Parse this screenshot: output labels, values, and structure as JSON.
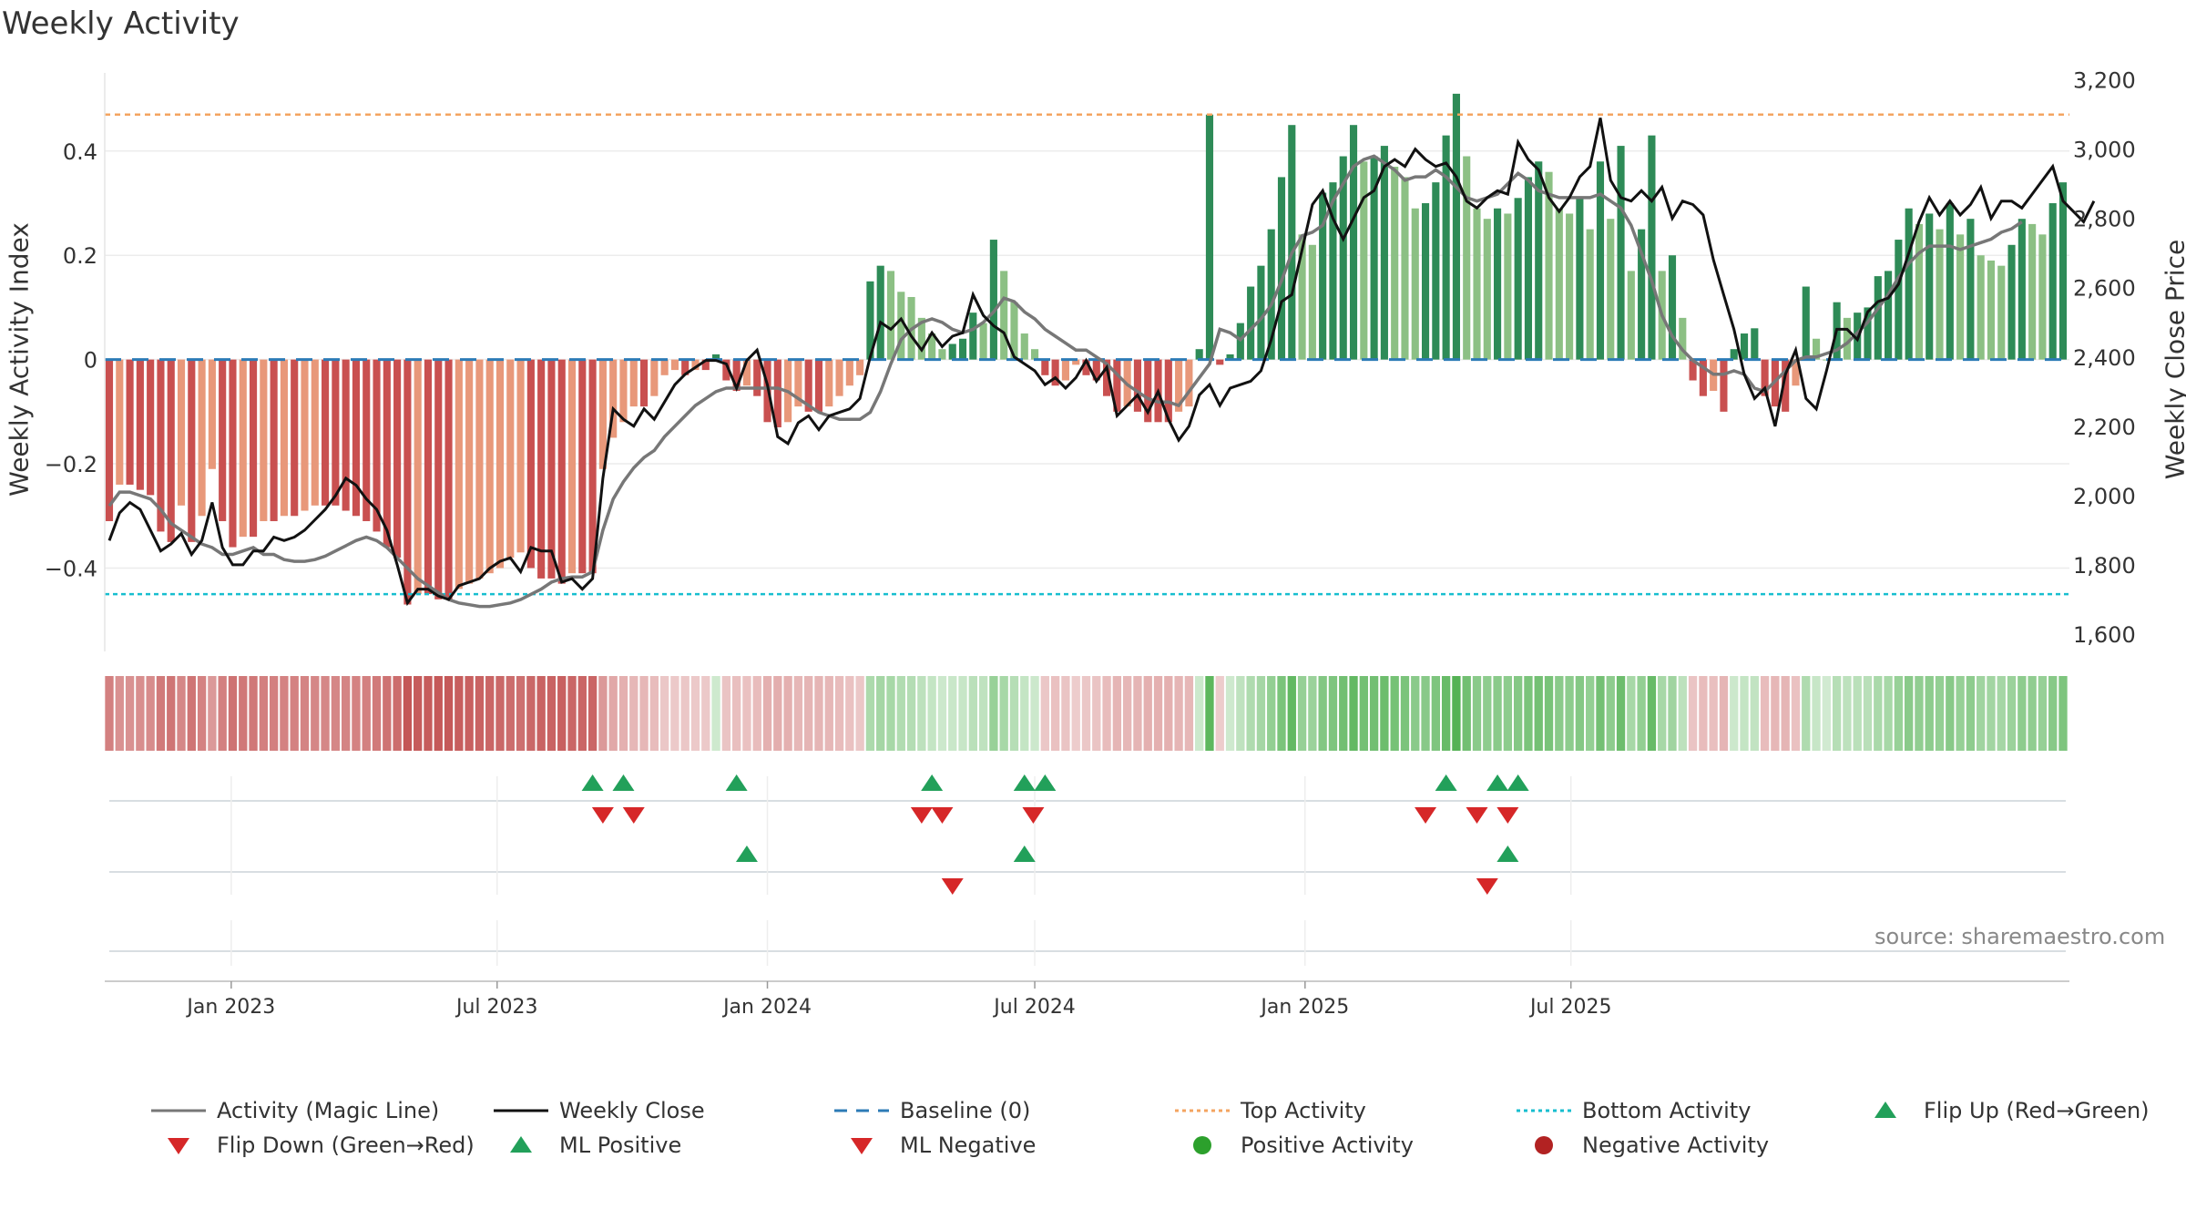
{
  "title": "Weekly Activity",
  "source_text": "source: sharemaestro.com",
  "colors": {
    "bar_neg_dark": "#c95050",
    "bar_neg_light": "#e8987a",
    "bar_pos_dark": "#2e8b57",
    "bar_pos_light": "#8cc084",
    "magic_line": "#777777",
    "weekly_close": "#111111",
    "baseline": "#2c7bb6",
    "top_activity": "#f4a460",
    "bottom_activity": "#17becf",
    "up_marker": "#22a05a",
    "down_marker": "#d62728",
    "pos_activity_dot": "#2ca02c",
    "neg_activity_dot": "#b22222"
  },
  "legend": [
    {
      "label": "Activity (Magic Line)",
      "icon": "gray-line"
    },
    {
      "label": "Weekly Close",
      "icon": "black-line"
    },
    {
      "label": "Baseline (0)",
      "icon": "blue-dashed-line"
    },
    {
      "label": "Top Activity",
      "icon": "orange-dotted-line"
    },
    {
      "label": "Bottom Activity",
      "icon": "cyan-dotted-line"
    },
    {
      "label": "Flip Up (Red→Green)",
      "icon": "green-up-triangle"
    },
    {
      "label": "Flip Down (Green→Red)",
      "icon": "red-down-triangle"
    },
    {
      "label": "ML Positive",
      "icon": "green-up-triangle"
    },
    {
      "label": "ML Negative",
      "icon": "red-down-triangle"
    },
    {
      "label": "Positive Activity",
      "icon": "green-dot"
    },
    {
      "label": "Negative Activity",
      "icon": "red-dot"
    }
  ],
  "chart_data": {
    "type": "bar",
    "title": "Weekly Activity",
    "ylabel": "Weekly Activity Index",
    "ylabel_right": "Weekly Close Price",
    "ylim": [
      -0.56,
      0.55
    ],
    "ylim_right": [
      1550,
      3220
    ],
    "yticks": [
      -0.4,
      -0.2,
      0,
      0.2,
      0.4
    ],
    "ytick_labels": [
      "−0.4",
      "−0.2",
      "0",
      "0.2",
      "0.4"
    ],
    "yticks_right": [
      1600,
      1800,
      2000,
      2200,
      2400,
      2600,
      2800,
      3000,
      3200
    ],
    "ytick_labels_right": [
      "1,600",
      "1,800",
      "2,000",
      "2,200",
      "2,400",
      "2,600",
      "2,800",
      "3,000",
      "3,200"
    ],
    "x_start": "2022-10-10",
    "x_step_days": 7,
    "xticks": [
      "2023-01-01",
      "2023-07-01",
      "2024-01-01",
      "2024-07-01",
      "2025-01-01",
      "2025-07-01"
    ],
    "xtick_labels": [
      "Jan 2023",
      "Jul 2023",
      "Jan 2024",
      "Jul 2024",
      "Jan 2025",
      "Jul 2025"
    ],
    "top_activity": 0.47,
    "bottom_activity": -0.45,
    "baseline": 0,
    "series": [
      {
        "name": "Activity (Magic Line)",
        "axis": "right",
        "values": [
          1970,
          2010,
          2010,
          2000,
          1990,
          1960,
          1920,
          1900,
          1880,
          1860,
          1850,
          1830,
          1830,
          1840,
          1850,
          1830,
          1830,
          1815,
          1810,
          1810,
          1815,
          1825,
          1840,
          1855,
          1870,
          1880,
          1870,
          1850,
          1820,
          1790,
          1760,
          1740,
          1720,
          1700,
          1690,
          1685,
          1680,
          1680,
          1685,
          1690,
          1700,
          1715,
          1730,
          1750,
          1760,
          1765,
          1765,
          1780,
          1900,
          1990,
          2040,
          2080,
          2110,
          2130,
          2170,
          2200,
          2230,
          2260,
          2280,
          2300,
          2310,
          2310,
          2310,
          2310,
          2310,
          2310,
          2300,
          2280,
          2260,
          2240,
          2230,
          2220,
          2220,
          2220,
          2240,
          2300,
          2380,
          2450,
          2480,
          2500,
          2510,
          2500,
          2480,
          2470,
          2480,
          2500,
          2530,
          2570,
          2560,
          2530,
          2510,
          2480,
          2460,
          2440,
          2420,
          2420,
          2400,
          2380,
          2350,
          2320,
          2300,
          2280,
          2270,
          2270,
          2260,
          2300,
          2340,
          2380,
          2480,
          2470,
          2450,
          2480,
          2510,
          2550,
          2620,
          2700,
          2750,
          2760,
          2780,
          2850,
          2900,
          2950,
          2970,
          2980,
          2960,
          2940,
          2910,
          2920,
          2920,
          2940,
          2920,
          2890,
          2860,
          2850,
          2860,
          2870,
          2900,
          2930,
          2910,
          2880,
          2870,
          2860,
          2860,
          2860,
          2860,
          2870,
          2850,
          2830,
          2780,
          2700,
          2620,
          2520,
          2460,
          2420,
          2390,
          2370,
          2350,
          2350,
          2360,
          2350,
          2310,
          2300,
          2330,
          2360,
          2390,
          2400,
          2400,
          2410,
          2420,
          2440,
          2470,
          2500,
          2540,
          2580,
          2630,
          2670,
          2700,
          2720,
          2720,
          2720,
          2710,
          2720,
          2730,
          2740,
          2760,
          2770,
          2790
        ]
      },
      {
        "name": "Weekly Close",
        "axis": "right",
        "values": [
          1870,
          1950,
          1980,
          1960,
          1900,
          1840,
          1860,
          1890,
          1830,
          1870,
          1980,
          1850,
          1800,
          1800,
          1840,
          1840,
          1880,
          1870,
          1880,
          1900,
          1930,
          1960,
          2000,
          2050,
          2030,
          1990,
          1960,
          1900,
          1800,
          1690,
          1730,
          1730,
          1710,
          1700,
          1740,
          1750,
          1760,
          1790,
          1810,
          1820,
          1780,
          1850,
          1840,
          1840,
          1750,
          1760,
          1730,
          1760,
          2050,
          2250,
          2220,
          2200,
          2250,
          2220,
          2270,
          2320,
          2350,
          2370,
          2390,
          2390,
          2380,
          2310,
          2390,
          2420,
          2320,
          2170,
          2150,
          2210,
          2230,
          2190,
          2230,
          2240,
          2250,
          2280,
          2400,
          2500,
          2480,
          2510,
          2460,
          2420,
          2470,
          2430,
          2460,
          2470,
          2580,
          2520,
          2490,
          2470,
          2400,
          2380,
          2360,
          2320,
          2340,
          2310,
          2340,
          2390,
          2330,
          2370,
          2230,
          2260,
          2290,
          2240,
          2300,
          2220,
          2160,
          2200,
          2290,
          2320,
          2260,
          2310,
          2320,
          2330,
          2360,
          2450,
          2560,
          2580,
          2710,
          2840,
          2880,
          2800,
          2740,
          2800,
          2860,
          2880,
          2950,
          2970,
          2950,
          3000,
          2970,
          2950,
          2960,
          2920,
          2850,
          2830,
          2860,
          2880,
          2870,
          3020,
          2970,
          2940,
          2860,
          2820,
          2860,
          2920,
          2950,
          3090,
          2910,
          2860,
          2850,
          2880,
          2850,
          2890,
          2800,
          2850,
          2840,
          2810,
          2680,
          2580,
          2480,
          2350,
          2280,
          2310,
          2200,
          2350,
          2420,
          2280,
          2250,
          2360,
          2480,
          2480,
          2450,
          2530,
          2560,
          2570,
          2610,
          2700,
          2790,
          2860,
          2810,
          2850,
          2810,
          2840,
          2890,
          2800,
          2850,
          2850,
          2830,
          2870,
          2910,
          2950,
          2850,
          2820,
          2790,
          2850
        ]
      },
      {
        "name": "Weekly Activity Index",
        "axis": "left",
        "values": [
          -0.31,
          -0.24,
          -0.24,
          -0.25,
          -0.26,
          -0.33,
          -0.35,
          -0.28,
          -0.35,
          -0.3,
          -0.21,
          -0.31,
          -0.36,
          -0.34,
          -0.34,
          -0.31,
          -0.31,
          -0.3,
          -0.3,
          -0.29,
          -0.28,
          -0.28,
          -0.28,
          -0.29,
          -0.3,
          -0.31,
          -0.33,
          -0.36,
          -0.38,
          -0.47,
          -0.45,
          -0.45,
          -0.46,
          -0.46,
          -0.44,
          -0.43,
          -0.42,
          -0.41,
          -0.4,
          -0.38,
          -0.37,
          -0.4,
          -0.42,
          -0.42,
          -0.43,
          -0.41,
          -0.41,
          -0.41,
          -0.21,
          -0.15,
          -0.12,
          -0.09,
          -0.09,
          -0.07,
          -0.03,
          -0.02,
          -0.03,
          -0.02,
          -0.02,
          0.01,
          -0.04,
          -0.06,
          -0.05,
          -0.07,
          -0.12,
          -0.13,
          -0.12,
          -0.09,
          -0.1,
          -0.1,
          -0.09,
          -0.07,
          -0.05,
          -0.03,
          0.15,
          0.18,
          0.17,
          0.13,
          0.12,
          0.08,
          0.05,
          0.02,
          0.03,
          0.04,
          0.09,
          0.07,
          0.23,
          0.17,
          0.11,
          0.05,
          0.02,
          -0.03,
          -0.05,
          -0.04,
          -0.01,
          -0.03,
          -0.04,
          -0.07,
          -0.1,
          -0.09,
          -0.1,
          -0.12,
          -0.12,
          -0.12,
          -0.1,
          -0.09,
          0.02,
          0.47,
          -0.01,
          0.01,
          0.07,
          0.14,
          0.18,
          0.25,
          0.35,
          0.45,
          0.24,
          0.22,
          0.32,
          0.34,
          0.39,
          0.45,
          0.38,
          0.39,
          0.41,
          0.37,
          0.35,
          0.29,
          0.3,
          0.34,
          0.43,
          0.51,
          0.39,
          0.29,
          0.27,
          0.29,
          0.28,
          0.31,
          0.35,
          0.38,
          0.36,
          0.29,
          0.28,
          0.31,
          0.25,
          0.38,
          0.27,
          0.41,
          0.17,
          0.25,
          0.43,
          0.17,
          0.2,
          0.08,
          -0.04,
          -0.07,
          -0.06,
          -0.1,
          0.02,
          0.05,
          0.06,
          -0.07,
          -0.09,
          -0.1,
          -0.05,
          0.14,
          0.04,
          0.0,
          0.11,
          0.08,
          0.09,
          0.1,
          0.16,
          0.17,
          0.23,
          0.29,
          0.26,
          0.28,
          0.25,
          0.3,
          0.24,
          0.27,
          0.2,
          0.19,
          0.18,
          0.22,
          0.27,
          0.26,
          0.24,
          0.3,
          0.34
        ]
      }
    ],
    "flip_up": [
      "2023-09-04",
      "2023-09-25",
      "2023-12-11",
      "2024-04-22",
      "2024-06-24",
      "2024-07-08",
      "2025-04-07",
      "2025-05-12",
      "2025-05-26"
    ],
    "flip_down": [
      "2023-09-11",
      "2023-10-02",
      "2024-04-15",
      "2024-04-29",
      "2024-06-30",
      "2025-03-24",
      "2025-04-28",
      "2025-05-19"
    ],
    "ml_positive": [
      "2023-12-18",
      "2024-06-24",
      "2025-05-19"
    ],
    "ml_negative": [
      "2024-05-06",
      "2025-05-05"
    ]
  }
}
